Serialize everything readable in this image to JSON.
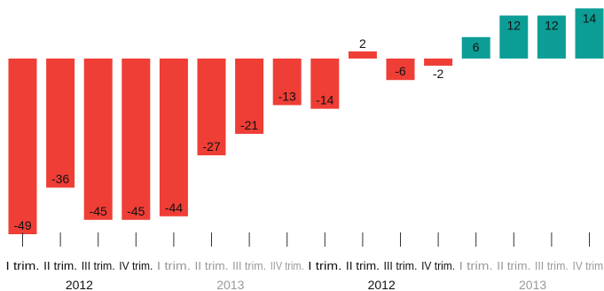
{
  "chart_data": {
    "type": "bar",
    "title": "",
    "xlabel": "",
    "ylabel": "",
    "ylim": [
      -49,
      14
    ],
    "grid": false,
    "legend": "none",
    "colors": {
      "negative": "#ef3e36",
      "positive": "#0c9e96",
      "dark_text": "#111111",
      "gray_text": "#999999",
      "small_value_text": "#e8261d"
    },
    "categories": [
      "I trim.",
      "II trim.",
      "III trim.",
      "IV trim.",
      "I trim.",
      "II trim.",
      "III trim.",
      "IIV trim.",
      "I trim.",
      "II trim.",
      "III trim.",
      "IV trim.",
      "I trim.",
      "II trim.",
      "III trim.",
      "IV trim."
    ],
    "tick_styles": [
      "dark",
      "dark",
      "dark",
      "dark",
      "gray",
      "gray",
      "gray",
      "gray",
      "dark",
      "dark",
      "dark",
      "dark",
      "gray",
      "gray",
      "gray",
      "gray"
    ],
    "groups": [
      {
        "label": "2012",
        "style": "dark",
        "start": 0,
        "end": 3
      },
      {
        "label": "2013",
        "style": "gray",
        "start": 4,
        "end": 7
      },
      {
        "label": "2012",
        "style": "dark",
        "start": 8,
        "end": 11
      },
      {
        "label": "2013",
        "style": "gray",
        "start": 12,
        "end": 15
      }
    ],
    "values": [
      -49,
      -36,
      -45,
      -45,
      -44,
      -27,
      -21,
      -13,
      -14,
      2,
      -6,
      -2,
      6,
      12,
      12,
      14
    ],
    "value_labels": [
      "-49",
      "-36",
      "-45",
      "-45",
      "-44",
      "-27",
      "-21",
      "-13",
      "-14",
      "2",
      "-6",
      "-2",
      "6",
      "12",
      "12",
      "14"
    ]
  }
}
